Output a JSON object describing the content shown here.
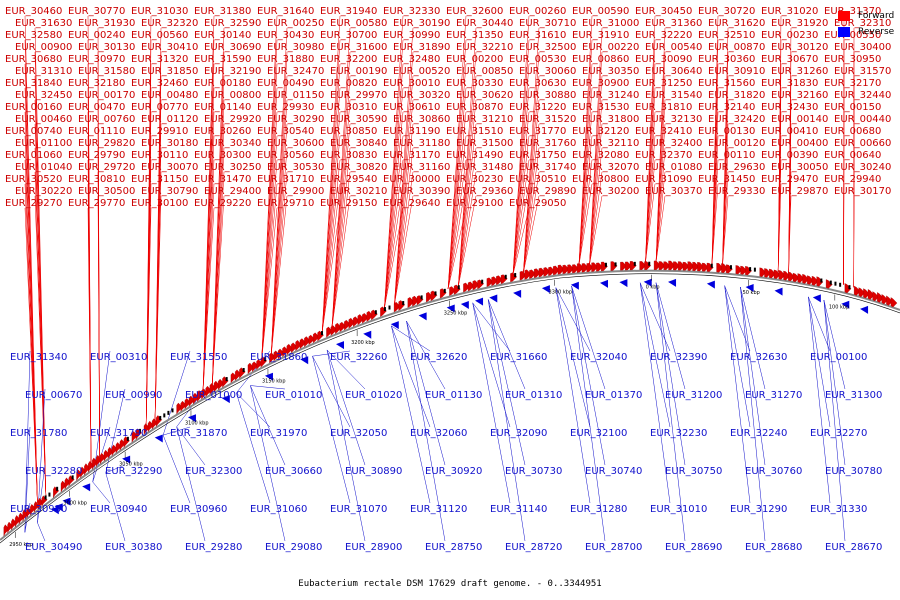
{
  "title": "Eubacterium rectale DSM 17629 draft genome. - 0..3344951",
  "legend": [
    {
      "name": "Forward",
      "color": "#ff0000"
    },
    {
      "name": "Reverse",
      "color": "#0000ff"
    }
  ],
  "colors": {
    "forward": "#dd0000",
    "reverse": "#0000dd",
    "backbone": "#888888",
    "leader_forward": "#ee0000",
    "leader_reverse": "#1111cc"
  },
  "ticks": [
    "2950 kbp",
    "3000 kbp",
    "3050 kbp",
    "3100 kbp",
    "3150 kbp",
    "3200 kbp",
    "3250 kbp",
    "3300 kbp",
    "0 kbp",
    "50 kbp",
    "100 kbp"
  ],
  "forward_labels": [
    "EUR_30460",
    "EUR_30770",
    "EUR_31030",
    "EUR_31380",
    "EUR_31640",
    "EUR_31940",
    "EUR_32330",
    "EUR_32600",
    "EUR_00260",
    "EUR_00590",
    "EUR_30450",
    "EUR_30720",
    "EUR_31020",
    "EUR_31370",
    "EUR_31630",
    "EUR_31930",
    "EUR_32320",
    "EUR_32590",
    "EUR_00250",
    "EUR_00580",
    "EUR_30190",
    "EUR_30440",
    "EUR_30710",
    "EUR_31000",
    "EUR_31360",
    "EUR_31620",
    "EUR_31920",
    "EUR_32310",
    "EUR_32580",
    "EUR_00240",
    "EUR_00560",
    "EUR_30140",
    "EUR_30430",
    "EUR_30700",
    "EUR_30990",
    "EUR_31350",
    "EUR_31610",
    "EUR_31910",
    "EUR_32220",
    "EUR_32510",
    "EUR_00230",
    "EUR_00550",
    "EUR_00900",
    "EUR_30130",
    "EUR_30410",
    "EUR_30690",
    "EUR_30980",
    "EUR_31600",
    "EUR_31890",
    "EUR_32210",
    "EUR_32500",
    "EUR_00220",
    "EUR_00540",
    "EUR_00870",
    "EUR_30120",
    "EUR_30400",
    "EUR_30680",
    "EUR_30970",
    "EUR_31320",
    "EUR_31590",
    "EUR_31880",
    "EUR_32200",
    "EUR_32480",
    "EUR_00200",
    "EUR_00530",
    "EUR_00860",
    "EUR_30090",
    "EUR_30360",
    "EUR_30670",
    "EUR_30950",
    "EUR_31310",
    "EUR_31580",
    "EUR_31850",
    "EUR_32190",
    "EUR_32470",
    "EUR_00190",
    "EUR_00520",
    "EUR_00850",
    "EUR_30060",
    "EUR_30350",
    "EUR_30640",
    "EUR_30910",
    "EUR_31260",
    "EUR_31570",
    "EUR_31840",
    "EUR_32180",
    "EUR_32460",
    "EUR_00180",
    "EUR_00490",
    "EUR_00820",
    "EUR_30010",
    "EUR_30330",
    "EUR_30630",
    "EUR_30900",
    "EUR_31250",
    "EUR_31560",
    "EUR_31830",
    "EUR_32170",
    "EUR_32450",
    "EUR_00170",
    "EUR_00480",
    "EUR_00800",
    "EUR_01150",
    "EUR_29970",
    "EUR_30320",
    "EUR_30620",
    "EUR_30880",
    "EUR_31240",
    "EUR_31540",
    "EUR_31820",
    "EUR_32160",
    "EUR_32440",
    "EUR_00160",
    "EUR_00470",
    "EUR_00770",
    "EUR_01140",
    "EUR_29930",
    "EUR_30310",
    "EUR_30610",
    "EUR_30870",
    "EUR_31220",
    "EUR_31530",
    "EUR_31810",
    "EUR_32140",
    "EUR_32430",
    "EUR_00150",
    "EUR_00460",
    "EUR_00760",
    "EUR_01120",
    "EUR_29920",
    "EUR_30290",
    "EUR_30590",
    "EUR_30860",
    "EUR_31210",
    "EUR_31520",
    "EUR_31800",
    "EUR_32130",
    "EUR_32420",
    "EUR_00140",
    "EUR_00440",
    "EUR_00740",
    "EUR_01110",
    "EUR_29910",
    "EUR_30260",
    "EUR_30540",
    "EUR_30850",
    "EUR_31190",
    "EUR_31510",
    "EUR_31770",
    "EUR_32120",
    "EUR_32410",
    "EUR_00130",
    "EUR_00410",
    "EUR_00680",
    "EUR_01100",
    "EUR_29820",
    "EUR_30180",
    "EUR_30340",
    "EUR_30600",
    "EUR_30840",
    "EUR_31180",
    "EUR_31500",
    "EUR_31760",
    "EUR_32110",
    "EUR_32400",
    "EUR_00120",
    "EUR_00400",
    "EUR_00660",
    "EUR_01060",
    "EUR_29790",
    "EUR_30110",
    "EUR_30300",
    "EUR_30560",
    "EUR_30830",
    "EUR_31170",
    "EUR_31490",
    "EUR_31750",
    "EUR_32080",
    "EUR_32370",
    "EUR_00110",
    "EUR_00390",
    "EUR_00640",
    "EUR_01040",
    "EUR_29720",
    "EUR_30070",
    "EUR_30250",
    "EUR_30530",
    "EUR_30820",
    "EUR_31160",
    "EUR_31480",
    "EUR_31740",
    "EUR_32070",
    "EUR_01080",
    "EUR_29630",
    "EUR_30050",
    "EUR_30240",
    "EUR_30520",
    "EUR_30810",
    "EUR_31150",
    "EUR_31470",
    "EUR_31710",
    "EUR_29540",
    "EUR_30000",
    "EUR_30230",
    "EUR_30510",
    "EUR_30800",
    "EUR_31090",
    "EUR_31450",
    "EUR_29470",
    "EUR_29940",
    "EUR_30220",
    "EUR_30500",
    "EUR_30790",
    "EUR_29400",
    "EUR_29900",
    "EUR_30210",
    "EUR_30390",
    "EUR_29360",
    "EUR_29890",
    "EUR_30200",
    "EUR_30370",
    "EUR_29330",
    "EUR_29870",
    "EUR_30170",
    "EUR_29270",
    "EUR_29770",
    "EUR_30100",
    "EUR_29220",
    "EUR_29710",
    "EUR_29150",
    "EUR_29640",
    "EUR_29100",
    "EUR_29050"
  ],
  "reverse_labels": [
    "EUR_31340",
    "EUR_00310",
    "EUR_31550",
    "EUR_31860",
    "EUR_32260",
    "EUR_32620",
    "EUR_31660",
    "EUR_32040",
    "EUR_32390",
    "EUR_32630",
    "EUR_00100",
    "EUR_00670",
    "EUR_00990",
    "EUR_01000",
    "EUR_01010",
    "EUR_01020",
    "EUR_01130",
    "EUR_01310",
    "EUR_01370",
    "EUR_31200",
    "EUR_31270",
    "EUR_31300",
    "EUR_31780",
    "EUR_31790",
    "EUR_31870",
    "EUR_31970",
    "EUR_32050",
    "EUR_32060",
    "EUR_32090",
    "EUR_32100",
    "EUR_32230",
    "EUR_32240",
    "EUR_32270",
    "EUR_32280",
    "EUR_32290",
    "EUR_32300",
    "EUR_30660",
    "EUR_30890",
    "EUR_30920",
    "EUR_30730",
    "EUR_30740",
    "EUR_30750",
    "EUR_30760",
    "EUR_30780",
    "EUR_30930",
    "EUR_30940",
    "EUR_30960",
    "EUR_31060",
    "EUR_31070",
    "EUR_31120",
    "EUR_31140",
    "EUR_31280",
    "EUR_31010",
    "EUR_31290",
    "EUR_31330",
    "EUR_30490",
    "EUR_30380",
    "EUR_29280",
    "EUR_29080",
    "EUR_28900",
    "EUR_28750",
    "EUR_28720",
    "EUR_28700",
    "EUR_28690",
    "EUR_28680",
    "EUR_28670"
  ]
}
